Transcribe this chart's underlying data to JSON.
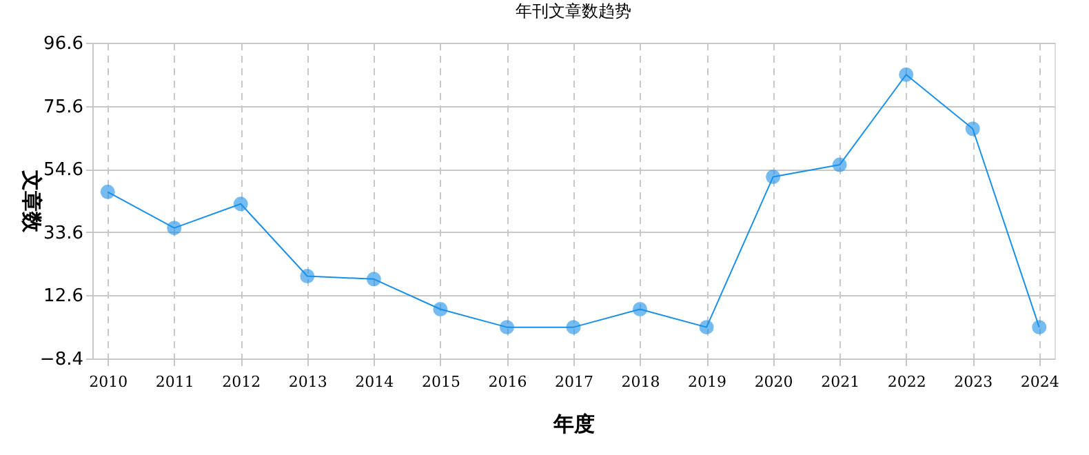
{
  "chart_data": {
    "type": "line",
    "title": "年刊文章数趋势",
    "xlabel": "年度",
    "ylabel": "文章数",
    "categories": [
      "2010",
      "2011",
      "2012",
      "2013",
      "2014",
      "2015",
      "2016",
      "2017",
      "2018",
      "2019",
      "2020",
      "2021",
      "2022",
      "2023",
      "2024"
    ],
    "series": [
      {
        "color": "#1a8fe8",
        "values": [
          47,
          35,
          43,
          19,
          18,
          8,
          2,
          2,
          8,
          2,
          52,
          56,
          86,
          68,
          2
        ]
      }
    ],
    "ylim": [
      -8.4,
      96.6
    ],
    "yticks": [
      -8.4,
      12.6,
      33.6,
      54.6,
      75.6,
      96.6
    ],
    "grid": true,
    "marker": "circle",
    "line_style": "solid",
    "legend": false
  }
}
